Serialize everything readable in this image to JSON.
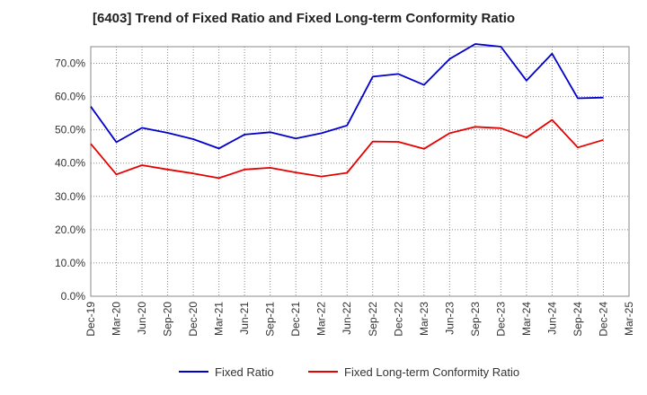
{
  "chart_data": {
    "type": "line",
    "title": "[6403]  Trend of Fixed Ratio and Fixed Long-term Conformity Ratio",
    "xlabel": "",
    "ylabel": "",
    "ylim": [
      0,
      75
    ],
    "yticks": [
      "0.0%",
      "10.0%",
      "20.0%",
      "30.0%",
      "40.0%",
      "50.0%",
      "60.0%",
      "70.0%"
    ],
    "ytick_values": [
      0,
      10,
      20,
      30,
      40,
      50,
      60,
      70
    ],
    "categories": [
      "Dec-19",
      "Mar-20",
      "Jun-20",
      "Sep-20",
      "Dec-20",
      "Mar-21",
      "Jun-21",
      "Sep-21",
      "Dec-21",
      "Mar-22",
      "Jun-22",
      "Sep-22",
      "Dec-22",
      "Mar-23",
      "Jun-23",
      "Sep-23",
      "Dec-23",
      "Mar-24",
      "Jun-24",
      "Sep-24",
      "Dec-24",
      "Mar-25"
    ],
    "grid": true,
    "legend_position": "bottom",
    "series": [
      {
        "name": "Fixed Ratio",
        "color": "#0000cc",
        "values": [
          57.0,
          46.3,
          50.6,
          49.1,
          47.2,
          44.4,
          48.6,
          49.3,
          47.4,
          49.0,
          51.3,
          66.0,
          66.8,
          63.5,
          71.3,
          75.8,
          75.0,
          64.8,
          72.9,
          59.5,
          59.7,
          null
        ]
      },
      {
        "name": "Fixed Long-term Conformity Ratio",
        "color": "#e60000",
        "values": [
          45.8,
          36.6,
          39.4,
          38.1,
          36.9,
          35.5,
          38.1,
          38.6,
          37.2,
          36.0,
          37.1,
          46.5,
          46.4,
          44.3,
          49.0,
          50.9,
          50.5,
          47.7,
          53.0,
          44.7,
          47.0,
          null
        ]
      }
    ]
  }
}
